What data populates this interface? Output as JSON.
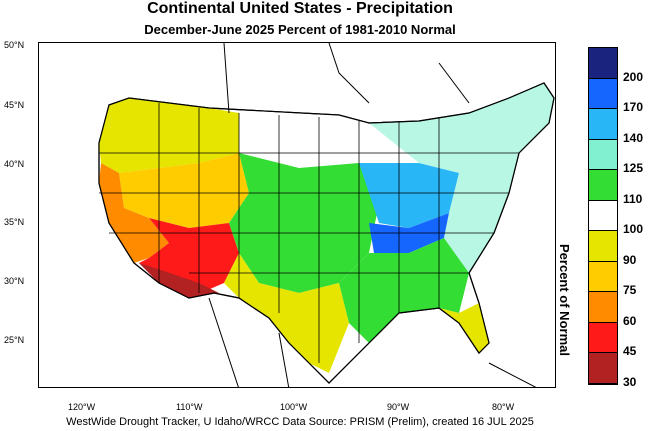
{
  "title": "Continental United States - Precipitation",
  "subtitle": "December-June 2025  Percent of 1981-2010 Normal",
  "footer": "WestWide Drought Tracker, U Idaho/WRCC Data Source: PRISM (Prelim), created 16 JUL 2025",
  "legend": {
    "title": "Percent of Normal",
    "labels": [
      "200",
      "170",
      "140",
      "125",
      "110",
      "100",
      "90",
      "75",
      "60",
      "45",
      "30"
    ],
    "colors": [
      "#1a237e",
      "#1565ff",
      "#29b6f6",
      "#80f0d0",
      "#33dd33",
      "#ffffff",
      "#e5e500",
      "#ffcc00",
      "#ff8c00",
      "#ff1a1a",
      "#b22222"
    ]
  },
  "axes": {
    "lat_labels": [
      "50°N",
      "45°N",
      "40°N",
      "35°N",
      "30°N",
      "25°N"
    ],
    "lon_labels": [
      "120°W",
      "110°W",
      "100°W",
      "90°W",
      "80°W"
    ]
  },
  "regions": [
    {
      "name": "southwest-desert",
      "category": "30",
      "color": "#b22222"
    },
    {
      "name": "arizona-new-mexico",
      "category": "45",
      "color": "#ff1a1a"
    },
    {
      "name": "california-nevada",
      "category": "60",
      "color": "#ff8c00"
    },
    {
      "name": "great-basin",
      "category": "75",
      "color": "#ffcc00"
    },
    {
      "name": "northern-rockies",
      "category": "90",
      "color": "#e5e500"
    },
    {
      "name": "northern-plains",
      "category": "100",
      "color": "#ffffff"
    },
    {
      "name": "central-plains",
      "category": "110",
      "color": "#33dd33"
    },
    {
      "name": "ohio-valley",
      "category": "140",
      "color": "#29b6f6"
    },
    {
      "name": "tennessee-valley",
      "category": "170",
      "color": "#1565ff"
    },
    {
      "name": "southeast",
      "category": "110",
      "color": "#33dd33"
    },
    {
      "name": "florida",
      "category": "90",
      "color": "#e5e500"
    },
    {
      "name": "northeast",
      "category": "100",
      "color": "#ffffff"
    }
  ]
}
